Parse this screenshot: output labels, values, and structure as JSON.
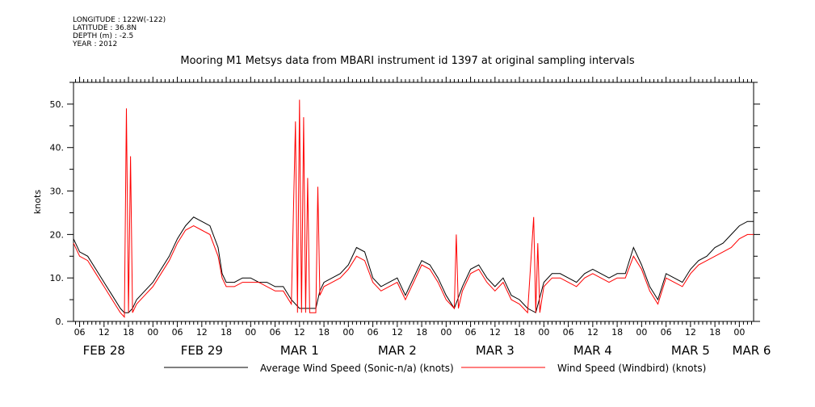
{
  "meta": {
    "longitude": "LONGITUDE : 122W(-122)",
    "latitude": "LATITUDE : 36.8N",
    "depth": "DEPTH (m) : -2.5",
    "year": "YEAR : 2012"
  },
  "chart_data": {
    "type": "line",
    "title": "Mooring M1 Metsys data from MBARI instrument id 1397 at original sampling intervals",
    "ylabel": "knots",
    "xlabel": "",
    "ylim": [
      0,
      55
    ],
    "y_ticks": [
      0,
      10,
      20,
      30,
      40,
      50
    ],
    "y_tick_labels": [
      "0.",
      "10.",
      "20.",
      "30.",
      "40.",
      "50."
    ],
    "x_unit": "hours since 2012-02-28 00:00",
    "xlim": [
      4.5,
      171.5
    ],
    "hour_ticks": [
      {
        "h": 6,
        "label": "06"
      },
      {
        "h": 12,
        "label": "12"
      },
      {
        "h": 18,
        "label": "18"
      },
      {
        "h": 24,
        "label": "00"
      },
      {
        "h": 30,
        "label": "06"
      },
      {
        "h": 36,
        "label": "12"
      },
      {
        "h": 42,
        "label": "18"
      },
      {
        "h": 48,
        "label": "00"
      },
      {
        "h": 54,
        "label": "06"
      },
      {
        "h": 60,
        "label": "12"
      },
      {
        "h": 66,
        "label": "18"
      },
      {
        "h": 72,
        "label": "00"
      },
      {
        "h": 78,
        "label": "06"
      },
      {
        "h": 84,
        "label": "12"
      },
      {
        "h": 90,
        "label": "18"
      },
      {
        "h": 96,
        "label": "00"
      },
      {
        "h": 102,
        "label": "06"
      },
      {
        "h": 108,
        "label": "12"
      },
      {
        "h": 114,
        "label": "18"
      },
      {
        "h": 120,
        "label": "00"
      },
      {
        "h": 126,
        "label": "06"
      },
      {
        "h": 132,
        "label": "12"
      },
      {
        "h": 138,
        "label": "18"
      },
      {
        "h": 144,
        "label": "00"
      },
      {
        "h": 150,
        "label": "06"
      },
      {
        "h": 156,
        "label": "12"
      },
      {
        "h": 162,
        "label": "18"
      },
      {
        "h": 168,
        "label": "00"
      }
    ],
    "day_labels": [
      {
        "h": 12,
        "label": "FEB 28"
      },
      {
        "h": 36,
        "label": "FEB 29"
      },
      {
        "h": 60,
        "label": "MAR  1"
      },
      {
        "h": 84,
        "label": "MAR  2"
      },
      {
        "h": 108,
        "label": "MAR  3"
      },
      {
        "h": 132,
        "label": "MAR  4"
      },
      {
        "h": 156,
        "label": "MAR  5"
      },
      {
        "h": 171,
        "label": "MAR  6"
      }
    ],
    "legend": {
      "placement": "bottom"
    },
    "series": [
      {
        "name": "Average Wind Speed (Sonic-n/a) (knots)",
        "color": "#000000",
        "x": [
          4.5,
          6,
          8,
          10,
          12,
          14,
          16,
          17,
          18,
          19,
          20,
          22,
          24,
          26,
          28,
          30,
          32,
          34,
          36,
          38,
          40,
          41,
          42,
          44,
          46,
          48,
          50,
          52,
          54,
          56,
          58,
          60,
          61,
          62,
          64,
          65,
          66,
          68,
          70,
          72,
          74,
          76,
          78,
          80,
          82,
          84,
          86,
          88,
          90,
          92,
          94,
          96,
          98,
          100,
          102,
          104,
          106,
          108,
          110,
          112,
          114,
          116,
          118,
          120,
          122,
          124,
          126,
          128,
          130,
          132,
          134,
          136,
          138,
          140,
          142,
          144,
          146,
          148,
          150,
          152,
          154,
          156,
          158,
          160,
          162,
          164,
          166,
          168,
          170,
          171.5
        ],
        "y": [
          19,
          16,
          15,
          12,
          9,
          6,
          3,
          2,
          2,
          3,
          5,
          7,
          9,
          12,
          15,
          19,
          22,
          24,
          23,
          22,
          17,
          11,
          9,
          9,
          10,
          10,
          9,
          9,
          8,
          8,
          5,
          3,
          3,
          3,
          3,
          7,
          9,
          10,
          11,
          13,
          17,
          16,
          10,
          8,
          9,
          10,
          6,
          10,
          14,
          13,
          10,
          6,
          3,
          8,
          12,
          13,
          10,
          8,
          10,
          6,
          5,
          3,
          2,
          9,
          11,
          11,
          10,
          9,
          11,
          12,
          11,
          10,
          11,
          11,
          17,
          13,
          8,
          5,
          11,
          10,
          9,
          12,
          14,
          15,
          17,
          18,
          20,
          22,
          23,
          23
        ]
      },
      {
        "name": "Wind Speed (Windbird) (knots)",
        "color": "#ff0000",
        "x": [
          4.5,
          6,
          8,
          10,
          12,
          14,
          16,
          17,
          17.5,
          18,
          18.5,
          19,
          20,
          22,
          24,
          26,
          28,
          30,
          32,
          34,
          36,
          38,
          40,
          41,
          42,
          44,
          46,
          48,
          50,
          52,
          54,
          56,
          58,
          59,
          59.5,
          60,
          60.5,
          61,
          61.5,
          62,
          62.5,
          63,
          64,
          64.5,
          65,
          66,
          68,
          70,
          72,
          74,
          76,
          78,
          80,
          82,
          84,
          86,
          88,
          90,
          92,
          94,
          96,
          98,
          98.5,
          99,
          100,
          102,
          104,
          106,
          108,
          110,
          112,
          114,
          116,
          117.5,
          118,
          118.5,
          119,
          120,
          122,
          124,
          126,
          128,
          130,
          132,
          134,
          136,
          138,
          140,
          142,
          144,
          146,
          148,
          150,
          152,
          154,
          156,
          158,
          160,
          162,
          164,
          166,
          168,
          170,
          171.5
        ],
        "y": [
          18,
          15,
          14,
          11,
          8,
          5,
          2,
          1,
          49,
          2,
          38,
          2,
          4,
          6,
          8,
          11,
          14,
          18,
          21,
          22,
          21,
          20,
          15,
          10,
          8,
          8,
          9,
          9,
          9,
          8,
          7,
          7,
          4,
          46,
          2,
          51,
          2,
          47,
          2,
          33,
          2,
          2,
          2,
          31,
          6,
          8,
          9,
          10,
          12,
          15,
          14,
          9,
          7,
          8,
          9,
          5,
          9,
          13,
          12,
          9,
          5,
          3,
          20,
          3,
          7,
          11,
          12,
          9,
          7,
          9,
          5,
          4,
          2,
          24,
          2,
          18,
          2,
          8,
          10,
          10,
          9,
          8,
          10,
          11,
          10,
          9,
          10,
          10,
          15,
          12,
          7,
          4,
          10,
          9,
          8,
          11,
          13,
          14,
          15,
          16,
          17,
          19,
          20,
          20
        ]
      }
    ]
  }
}
